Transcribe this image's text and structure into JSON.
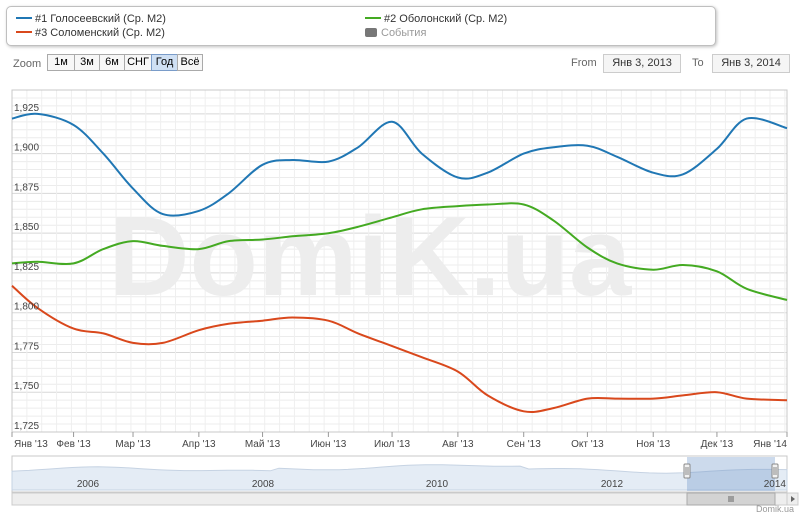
{
  "legend": {
    "items": [
      {
        "label": "#1 Голосеевский (Ср. М2)",
        "color": "#2077b4"
      },
      {
        "label": "#2 Оболонский (Ср. М2)",
        "color": "#44aa22"
      },
      {
        "label": "#3 Соломенский (Ср. М2)",
        "color": "#d9481c"
      }
    ],
    "events_label": "События"
  },
  "toolbar": {
    "zoom_label": "Zoom",
    "buttons": [
      "1м",
      "3м",
      "6м",
      "СНГ",
      "Год",
      "Всё"
    ],
    "active_button": "Год",
    "from_label": "From",
    "from_value": "Янв 3, 2013",
    "to_label": "To",
    "to_value": "Янв 3, 2014"
  },
  "watermark": "DomiK.ua",
  "credit": "Domik.ua",
  "chart_data": {
    "type": "line",
    "x_tick_labels": [
      "Янв '13",
      "Фев '13",
      "Мар '13",
      "Апр '13",
      "Май '13",
      "Июн '13",
      "Июл '13",
      "Авг '13",
      "Сен '13",
      "Окт '13",
      "Ноя '13",
      "Дек '13",
      "Янв '14"
    ],
    "x": [
      "2013-01-03",
      "2013-01-15",
      "2013-02-01",
      "2013-02-15",
      "2013-03-01",
      "2013-03-15",
      "2013-04-01",
      "2013-04-15",
      "2013-05-01",
      "2013-05-15",
      "2013-06-01",
      "2013-06-15",
      "2013-07-01",
      "2013-07-15",
      "2013-08-01",
      "2013-08-15",
      "2013-09-01",
      "2013-09-15",
      "2013-10-01",
      "2013-10-15",
      "2013-11-01",
      "2013-11-15",
      "2013-12-01",
      "2013-12-15",
      "2014-01-03"
    ],
    "ylim": [
      1725,
      1940
    ],
    "y_ticks": [
      1725,
      1750,
      1775,
      1800,
      1825,
      1850,
      1875,
      1900,
      1925
    ],
    "y_tick_labels": [
      "1,725",
      "1,750",
      "1,775",
      "1,800",
      "1,825",
      "1,850",
      "1,875",
      "1,900",
      "1,925"
    ],
    "grid": true,
    "series": [
      {
        "name": "#1 Голосеевский (Ср. М2)",
        "color": "#2077b4",
        "values": [
          1922,
          1925,
          1918,
          1900,
          1878,
          1862,
          1864,
          1875,
          1893,
          1896,
          1895,
          1904,
          1920,
          1900,
          1885,
          1888,
          1900,
          1904,
          1905,
          1898,
          1888,
          1887,
          1903,
          1922,
          1916
        ]
      },
      {
        "name": "#2 Оболонский (Ср. М2)",
        "color": "#44aa22",
        "values": [
          1831,
          1832,
          1831,
          1840,
          1845,
          1842,
          1840,
          1845,
          1846,
          1848,
          1850,
          1854,
          1860,
          1865,
          1867,
          1868,
          1868,
          1858,
          1841,
          1831,
          1827,
          1830,
          1826,
          1815,
          1808
        ]
      },
      {
        "name": "#3 Соломенский (Ср. М2)",
        "color": "#d9481c",
        "values": [
          1817,
          1803,
          1790,
          1787,
          1781,
          1781,
          1789,
          1793,
          1795,
          1797,
          1795,
          1787,
          1779,
          1772,
          1763,
          1748,
          1738,
          1740,
          1746,
          1746,
          1746,
          1748,
          1750,
          1746,
          1745
        ]
      }
    ],
    "navigator": {
      "tick_labels": [
        "2006",
        "2008",
        "2010",
        "2012",
        "2014"
      ]
    }
  }
}
